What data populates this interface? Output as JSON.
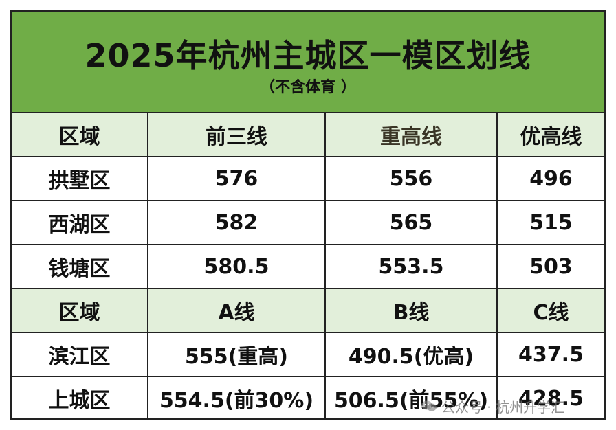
{
  "title": "2025年杭州主城区一模区划线",
  "subtitle": "（不含体育 ）",
  "header_row_1": [
    "区域",
    "前三线",
    "重高线",
    "优高线"
  ],
  "rows_group_1": [
    [
      "拱墅区",
      "576",
      "556",
      "496"
    ],
    [
      "西湖区",
      "582",
      "565",
      "515"
    ],
    [
      "钱塘区",
      "580.5",
      "553.5",
      "503"
    ]
  ],
  "header_row_2": [
    "区域",
    "A线",
    "B线",
    "C线"
  ],
  "rows_group_2": [
    [
      "滨江区",
      "555(重高)",
      "490.5(优高)",
      "437.5"
    ],
    [
      "上城区",
      "554.5(前30%)",
      "506.5(前55%)",
      "428.5"
    ]
  ],
  "watermark": {
    "icon": "wechat-icon",
    "text": "公众号 · 杭州升学汇"
  },
  "colors": {
    "banner": "#70ad47",
    "header_row": "#e2efda",
    "border": "#222222"
  }
}
